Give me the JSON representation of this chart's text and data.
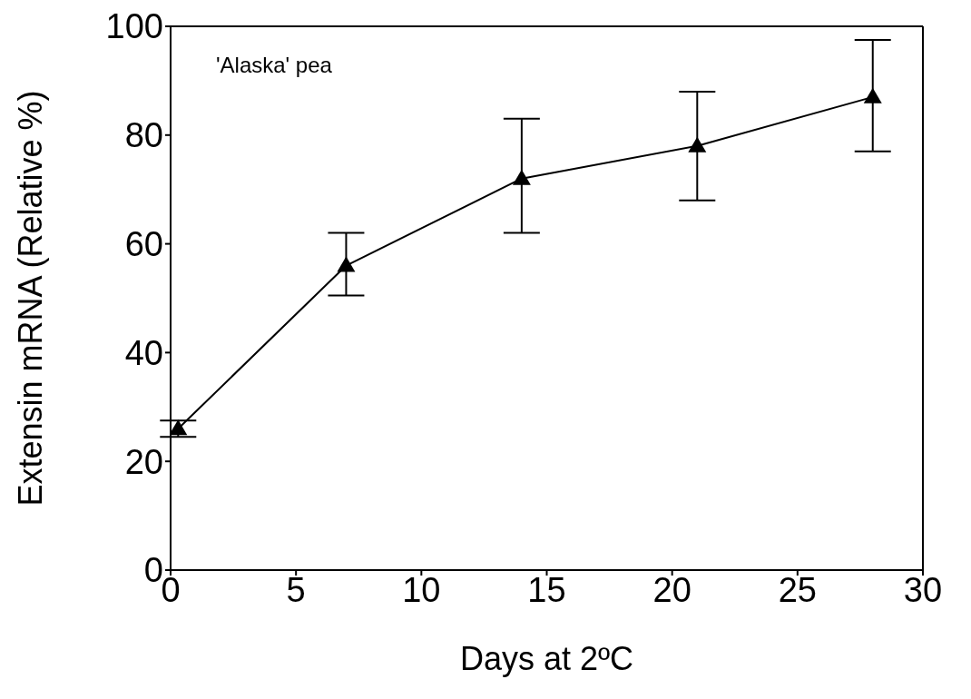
{
  "chart_data": {
    "type": "line",
    "xlabel": "Days at 2ºC",
    "ylabel": "Extensin mRNA (Relative %)",
    "annotations": [
      "'Alaska' pea"
    ],
    "x": [
      0.3,
      7,
      14,
      21,
      28
    ],
    "series": [
      {
        "color": "#000000",
        "values": [
          26,
          56,
          72,
          78,
          87
        ],
        "errors": [
          [
            24.5,
            27.5
          ],
          [
            50.5,
            62
          ],
          [
            62,
            83
          ],
          [
            68,
            88
          ],
          [
            77,
            97.5
          ]
        ]
      }
    ],
    "xlim": [
      0,
      30
    ],
    "xticks": [
      0,
      5,
      10,
      15,
      20,
      25,
      30
    ],
    "ylim": [
      0,
      100
    ],
    "yticks": [
      0,
      20,
      40,
      60,
      80,
      100
    ],
    "grid": false,
    "legend": false,
    "marker": "triangle",
    "line_style": "solid"
  }
}
